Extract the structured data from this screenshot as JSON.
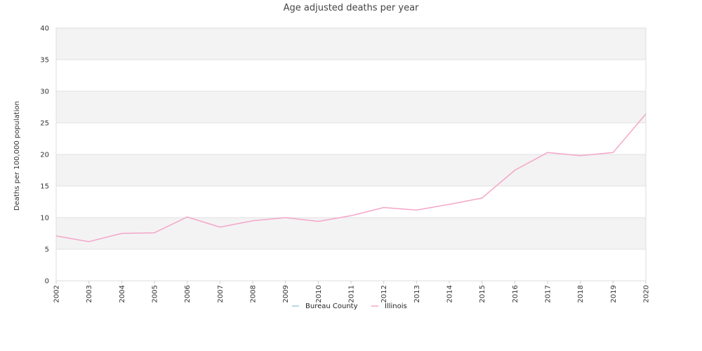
{
  "chart_data": {
    "type": "line",
    "title": "Age adjusted deaths per year",
    "xlabel": "",
    "ylabel": "Deaths per 100,000 population",
    "x": [
      "2002",
      "2003",
      "2004",
      "2005",
      "2006",
      "2007",
      "2008",
      "2009",
      "2010",
      "2011",
      "2012",
      "2013",
      "2014",
      "2015",
      "2016",
      "2017",
      "2018",
      "2019",
      "2020"
    ],
    "series": [
      {
        "name": "Bureau County",
        "color": "#9ecae1",
        "values": [
          null,
          null,
          null,
          null,
          null,
          null,
          null,
          null,
          null,
          null,
          null,
          null,
          null,
          null,
          null,
          null,
          null,
          null,
          null
        ]
      },
      {
        "name": "Illinois",
        "color": "#f4a6c8",
        "values": [
          7.1,
          6.2,
          7.5,
          7.6,
          10.1,
          8.5,
          9.5,
          10.0,
          9.4,
          10.3,
          11.6,
          11.2,
          12.1,
          13.1,
          17.5,
          20.3,
          19.8,
          20.3,
          26.4
        ]
      }
    ],
    "ylim": [
      0,
      40
    ],
    "yticks": [
      0,
      5,
      10,
      15,
      20,
      25,
      30,
      35,
      40
    ],
    "grid": true,
    "legend": "bottom-center"
  }
}
